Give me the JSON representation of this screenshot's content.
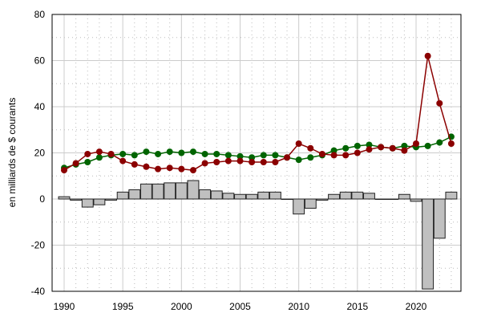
{
  "chart_data": {
    "type": "bar+line",
    "ylabel": "en milliards de $ courants",
    "xlabel": "",
    "xlim": [
      1989,
      2024
    ],
    "ylim": [
      -40,
      80
    ],
    "x_ticks": [
      1990,
      1995,
      2000,
      2005,
      2010,
      2015,
      2020
    ],
    "y_ticks": [
      -40,
      -20,
      0,
      20,
      40,
      60,
      80
    ],
    "grid": true,
    "x": [
      1990,
      1991,
      1992,
      1993,
      1994,
      1995,
      1996,
      1997,
      1998,
      1999,
      2000,
      2001,
      2002,
      2003,
      2004,
      2005,
      2006,
      2007,
      2008,
      2009,
      2010,
      2011,
      2012,
      2013,
      2014,
      2015,
      2016,
      2017,
      2018,
      2019,
      2020,
      2021,
      2022,
      2023
    ],
    "series": [
      {
        "type": "line",
        "color": "#006400",
        "values": [
          13.5,
          15,
          16,
          18,
          19,
          19.5,
          19,
          20.5,
          19.5,
          20.5,
          20,
          20.5,
          19.5,
          19.5,
          19,
          18.5,
          18,
          19,
          19,
          18,
          17,
          18,
          19,
          21,
          22,
          23,
          23.5,
          22.5,
          22,
          23,
          22.5,
          23,
          24.5,
          27
        ]
      },
      {
        "type": "line",
        "color": "#8b0000",
        "values": [
          12.5,
          15.5,
          19.5,
          20.5,
          19.5,
          16.5,
          15,
          14,
          13,
          13.5,
          13,
          12.5,
          15.5,
          16,
          16.5,
          16.5,
          16,
          16,
          16,
          18,
          24,
          22,
          19.5,
          19,
          19,
          20,
          21.5,
          22.5,
          22,
          21,
          24,
          62,
          41.5,
          24
        ]
      },
      {
        "type": "bar",
        "color": "#c0c0c0",
        "values": [
          1,
          -0.5,
          -3.5,
          -2.5,
          -0.5,
          3,
          4,
          6.5,
          6.5,
          7,
          7,
          8,
          4,
          3.5,
          2.5,
          2,
          2,
          3,
          3,
          0,
          -6.5,
          -4,
          -0.5,
          2,
          3,
          3,
          2.5,
          0,
          0,
          2,
          -1,
          -39,
          -17,
          3
        ]
      }
    ]
  }
}
